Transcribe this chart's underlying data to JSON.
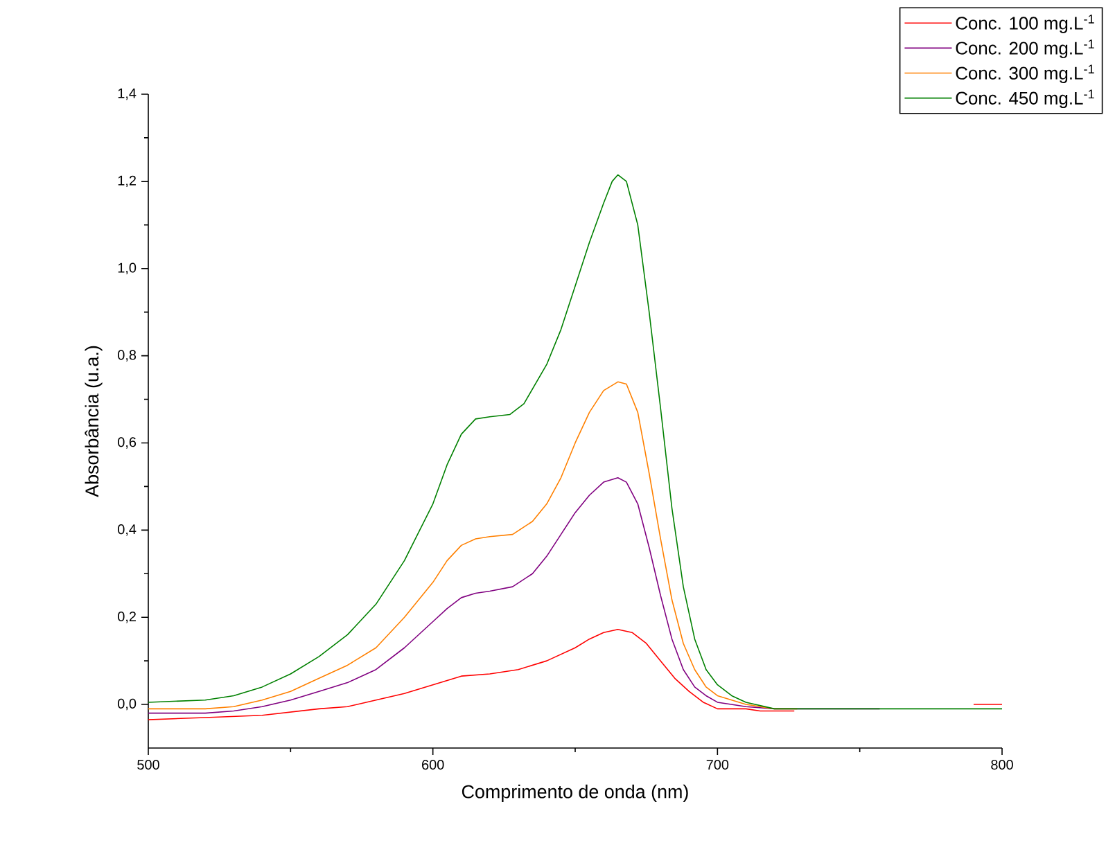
{
  "chart_data": {
    "type": "line",
    "xlabel": "Comprimento de onda (nm)",
    "ylabel": "Absorbância (u.a.)",
    "xlim": [
      500,
      800
    ],
    "ylim": [
      -0.1,
      1.4
    ],
    "xticks": [
      500,
      600,
      700,
      800
    ],
    "yticks": [
      {
        "value": 0,
        "label": "0,0"
      },
      {
        "value": 0.2,
        "label": "0,2"
      },
      {
        "value": 0.4,
        "label": "0,4"
      },
      {
        "value": 0.6,
        "label": "0,6"
      },
      {
        "value": 0.8,
        "label": "0,8"
      },
      {
        "value": 1.0,
        "label": "1,0"
      },
      {
        "value": 1.2,
        "label": "1,2"
      },
      {
        "value": 1.4,
        "label": "1,4"
      }
    ],
    "grid": false,
    "legend": "top right",
    "marker": "none",
    "line_style": "solid",
    "series": [
      {
        "name": "Conc. 100 mg.L$^{-1}$",
        "color": "#ff0000",
        "x": [
          500,
          520,
          540,
          560,
          570,
          580,
          590,
          600,
          610,
          620,
          630,
          640,
          650,
          655,
          660,
          665,
          670,
          675,
          680,
          685,
          690,
          695,
          700,
          710,
          715,
          727,
          760,
          790,
          800
        ],
        "values": [
          -0.035,
          -0.03,
          -0.025,
          -0.01,
          -0.005,
          0.01,
          0.025,
          0.045,
          0.065,
          0.07,
          0.08,
          0.1,
          0.13,
          0.15,
          0.165,
          0.172,
          0.165,
          0.14,
          0.1,
          0.06,
          0.03,
          0.005,
          -0.01,
          -0.01,
          -0.015,
          -0.015,
          null,
          0.0,
          0.0
        ]
      },
      {
        "name": "Conc. 200 mg.L$^{-1}$",
        "color": "#800080",
        "x": [
          500,
          520,
          530,
          540,
          550,
          560,
          570,
          580,
          590,
          600,
          605,
          610,
          615,
          620,
          628,
          635,
          640,
          645,
          650,
          655,
          660,
          665,
          668,
          672,
          676,
          680,
          684,
          688,
          692,
          696,
          700,
          710,
          720,
          757
        ],
        "values": [
          -0.02,
          -0.02,
          -0.015,
          -0.005,
          0.01,
          0.03,
          0.05,
          0.08,
          0.13,
          0.19,
          0.22,
          0.245,
          0.255,
          0.26,
          0.27,
          0.3,
          0.34,
          0.39,
          0.44,
          0.48,
          0.51,
          0.52,
          0.51,
          0.46,
          0.36,
          0.25,
          0.15,
          0.08,
          0.04,
          0.02,
          0.005,
          -0.005,
          -0.01,
          -0.01
        ]
      },
      {
        "name": "Conc. 300 mg.L$^{-1}$",
        "color": "#ff8000",
        "x": [
          500,
          520,
          530,
          540,
          550,
          560,
          570,
          580,
          590,
          600,
          605,
          610,
          615,
          620,
          628,
          635,
          640,
          645,
          650,
          655,
          660,
          665,
          668,
          672,
          676,
          680,
          684,
          688,
          692,
          696,
          700,
          710,
          720,
          728
        ],
        "values": [
          -0.01,
          -0.01,
          -0.005,
          0.01,
          0.03,
          0.06,
          0.09,
          0.13,
          0.2,
          0.28,
          0.33,
          0.365,
          0.38,
          0.385,
          0.39,
          0.42,
          0.46,
          0.52,
          0.6,
          0.67,
          0.72,
          0.74,
          0.735,
          0.67,
          0.53,
          0.38,
          0.24,
          0.14,
          0.08,
          0.04,
          0.02,
          0.0,
          -0.01,
          -0.01
        ]
      },
      {
        "name": "Conc. 450 mg.L$^{-1}$",
        "color": "#008000",
        "x": [
          500,
          520,
          530,
          540,
          550,
          560,
          570,
          580,
          590,
          600,
          605,
          610,
          615,
          620,
          627,
          632,
          640,
          645,
          650,
          655,
          660,
          663,
          665,
          668,
          672,
          676,
          680,
          684,
          688,
          692,
          696,
          700,
          705,
          710,
          720,
          730,
          800
        ],
        "values": [
          0.005,
          0.01,
          0.02,
          0.04,
          0.07,
          0.11,
          0.16,
          0.23,
          0.33,
          0.46,
          0.55,
          0.62,
          0.655,
          0.66,
          0.665,
          0.69,
          0.78,
          0.86,
          0.96,
          1.06,
          1.15,
          1.2,
          1.215,
          1.2,
          1.1,
          0.9,
          0.68,
          0.45,
          0.27,
          0.15,
          0.08,
          0.045,
          0.02,
          0.005,
          -0.01,
          -0.01,
          -0.01
        ]
      }
    ]
  }
}
